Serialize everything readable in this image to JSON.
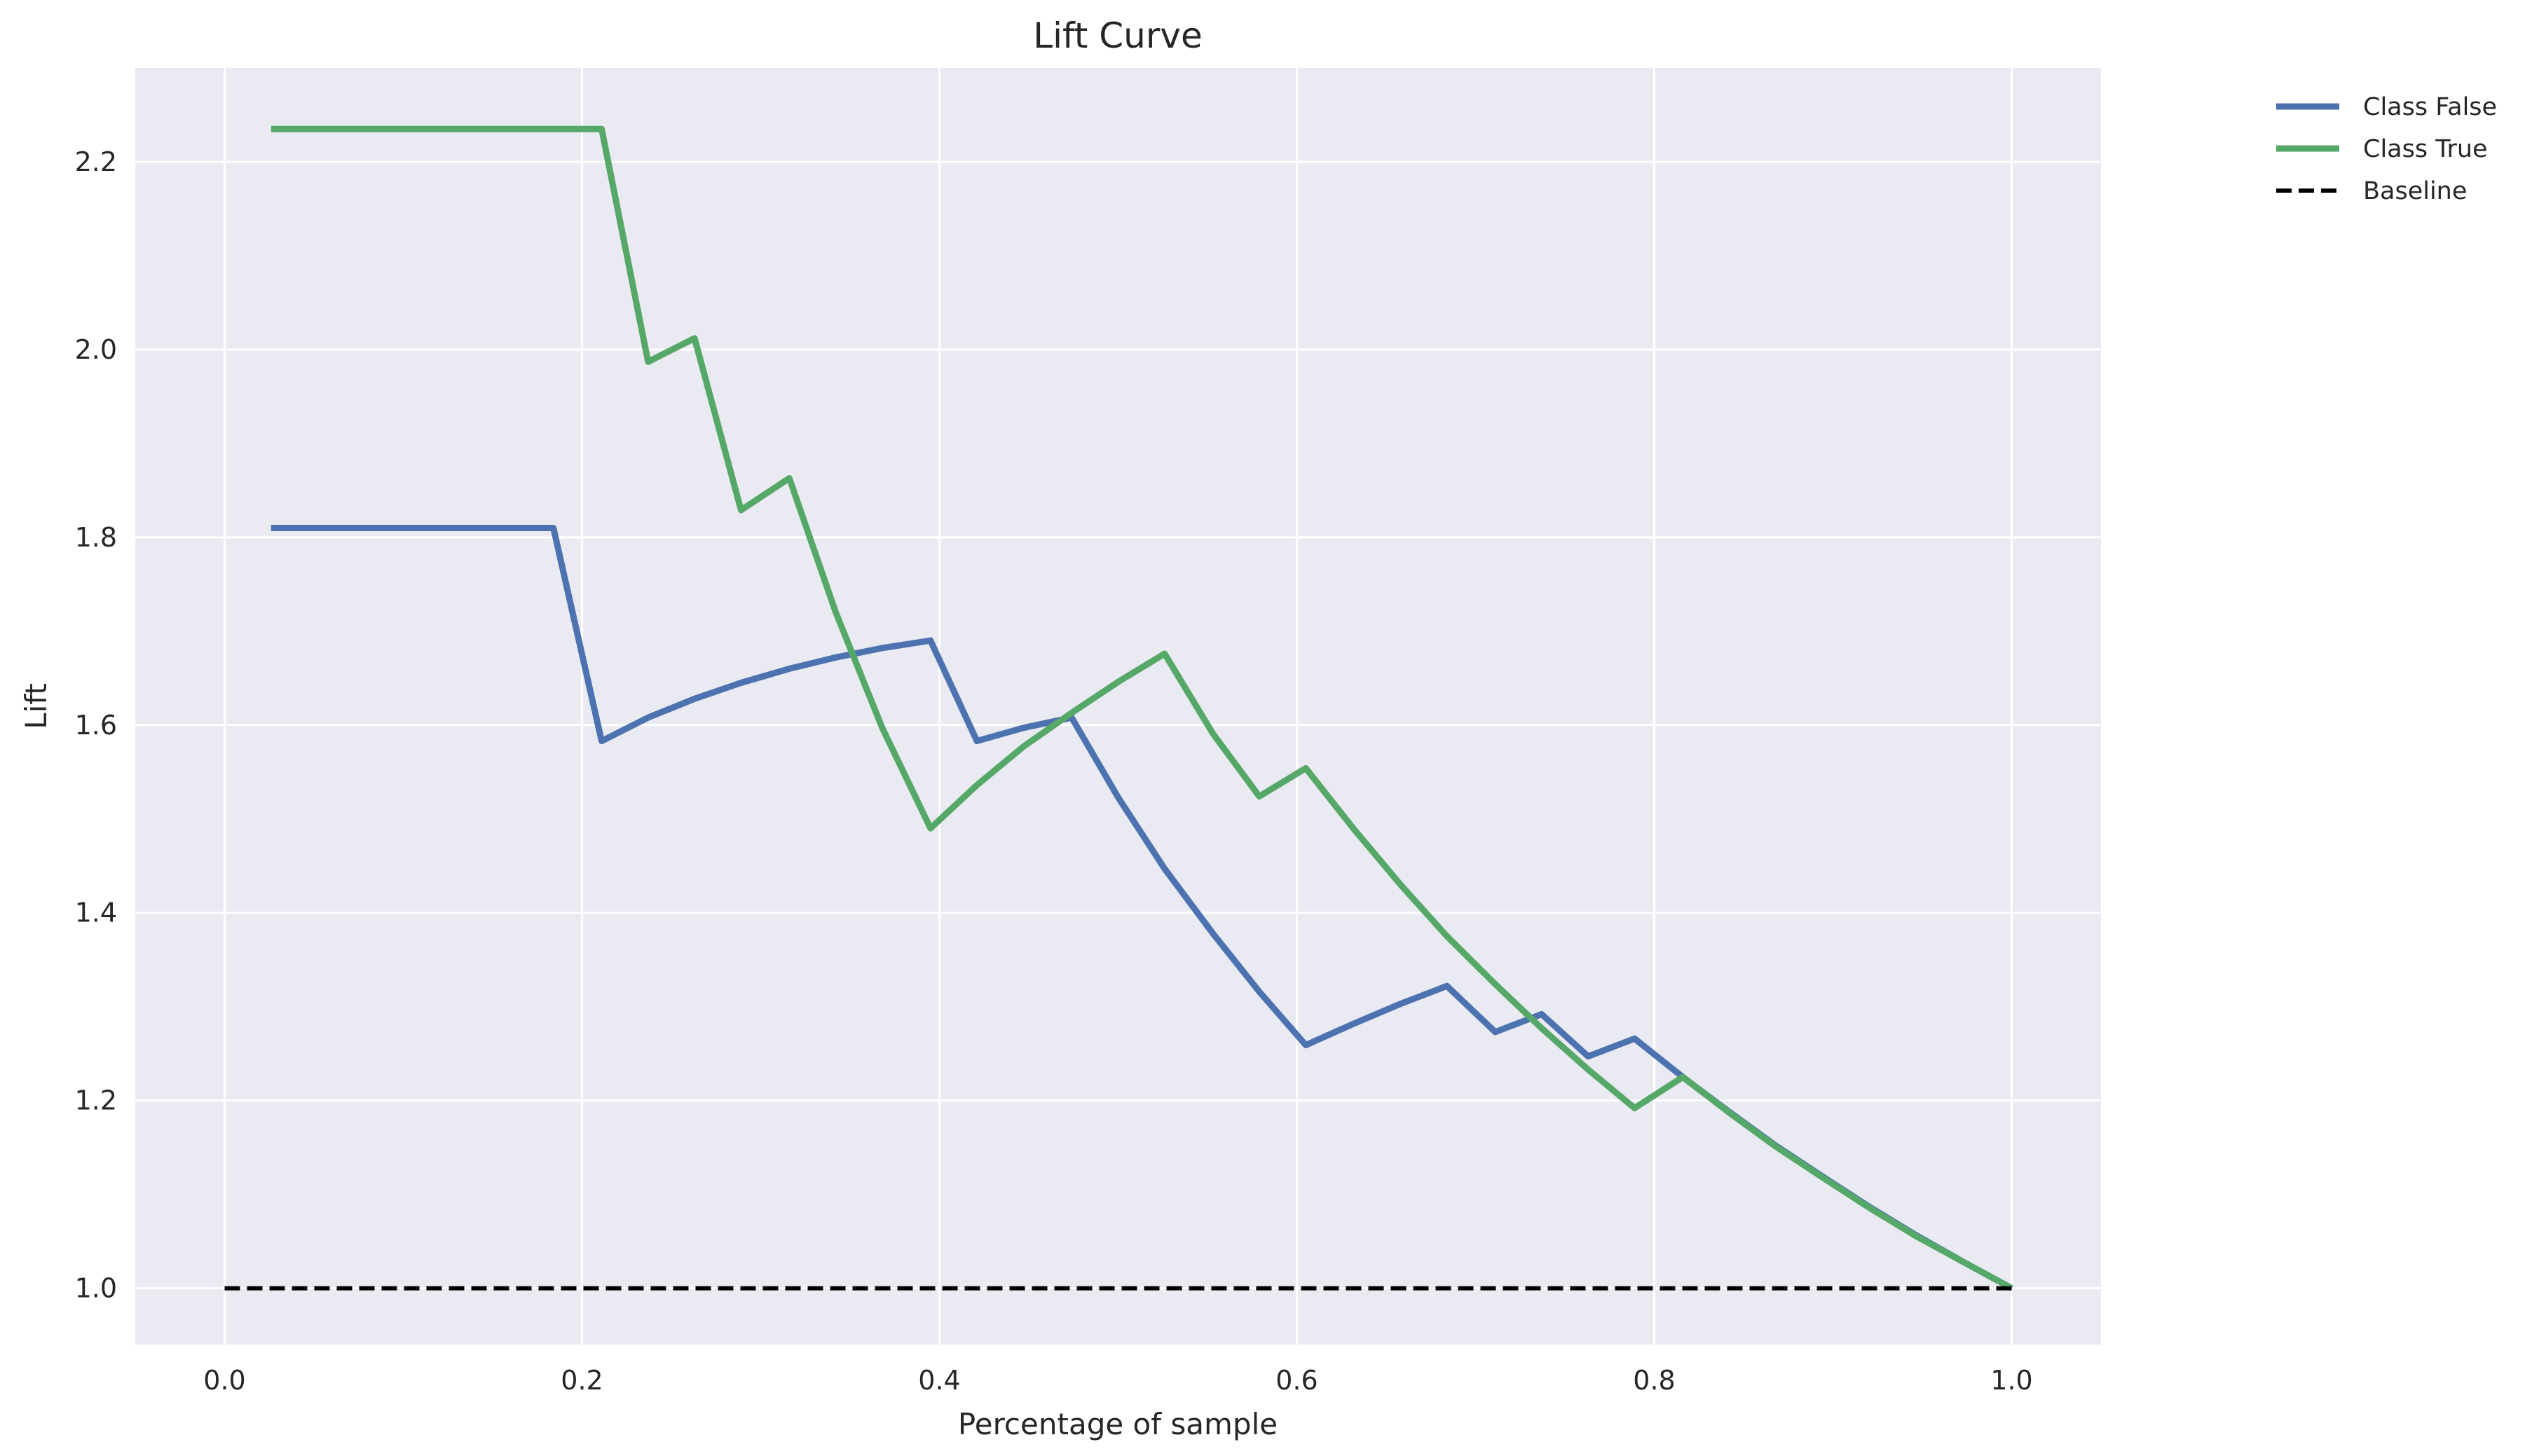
{
  "chart_data": {
    "type": "line",
    "title": "Lift Curve",
    "xlabel": "Percentage of sample",
    "ylabel": "Lift",
    "xlim": [
      -0.05,
      1.05
    ],
    "ylim": [
      0.94,
      2.3
    ],
    "xticks": [
      0.0,
      0.2,
      0.4,
      0.6,
      0.8,
      1.0
    ],
    "xtick_labels": [
      "0.0",
      "0.2",
      "0.4",
      "0.6",
      "0.8",
      "1.0"
    ],
    "yticks": [
      1.0,
      1.2,
      1.4,
      1.6,
      1.8,
      2.0,
      2.2
    ],
    "ytick_labels": [
      "1.0",
      "1.2",
      "1.4",
      "1.6",
      "1.8",
      "2.0",
      "2.2"
    ],
    "grid": true,
    "legend_position": "outside-top-right",
    "background": "#eaeaf2",
    "series": [
      {
        "name": "Class False",
        "color": "#4c72b0",
        "style": "solid",
        "x": [
          0.026,
          0.184,
          0.211,
          0.237,
          0.263,
          0.289,
          0.316,
          0.342,
          0.368,
          0.395,
          0.421,
          0.447,
          0.474,
          0.5,
          0.526,
          0.553,
          0.579,
          0.605,
          0.632,
          0.658,
          0.684,
          0.711,
          0.737,
          0.763,
          0.789,
          0.816,
          0.842,
          0.868,
          0.895,
          0.921,
          0.947,
          0.974,
          1.0
        ],
        "y": [
          1.81,
          1.81,
          1.583,
          1.608,
          1.628,
          1.645,
          1.66,
          1.672,
          1.682,
          1.69,
          1.583,
          1.597,
          1.608,
          1.523,
          1.447,
          1.378,
          1.316,
          1.259,
          1.282,
          1.303,
          1.322,
          1.273,
          1.292,
          1.247,
          1.266,
          1.225,
          1.188,
          1.152,
          1.118,
          1.086,
          1.056,
          1.027,
          1.0
        ]
      },
      {
        "name": "Class True",
        "color": "#55a868",
        "style": "solid",
        "x": [
          0.026,
          0.211,
          0.237,
          0.263,
          0.289,
          0.316,
          0.342,
          0.368,
          0.395,
          0.421,
          0.447,
          0.474,
          0.5,
          0.526,
          0.553,
          0.579,
          0.605,
          0.632,
          0.658,
          0.684,
          0.711,
          0.737,
          0.763,
          0.789,
          0.816,
          0.842,
          0.868,
          0.895,
          0.921,
          0.947,
          0.974,
          1.0
        ],
        "y": [
          2.235,
          2.235,
          1.987,
          2.012,
          1.829,
          1.863,
          1.72,
          1.597,
          1.49,
          1.536,
          1.577,
          1.613,
          1.646,
          1.676,
          1.591,
          1.524,
          1.554,
          1.489,
          1.43,
          1.375,
          1.324,
          1.277,
          1.233,
          1.192,
          1.225,
          1.187,
          1.151,
          1.117,
          1.085,
          1.055,
          1.027,
          1.0
        ]
      },
      {
        "name": "Baseline",
        "color": "#000000",
        "style": "dashed",
        "x": [
          0.0,
          1.0
        ],
        "y": [
          1.0,
          1.0
        ]
      }
    ]
  }
}
